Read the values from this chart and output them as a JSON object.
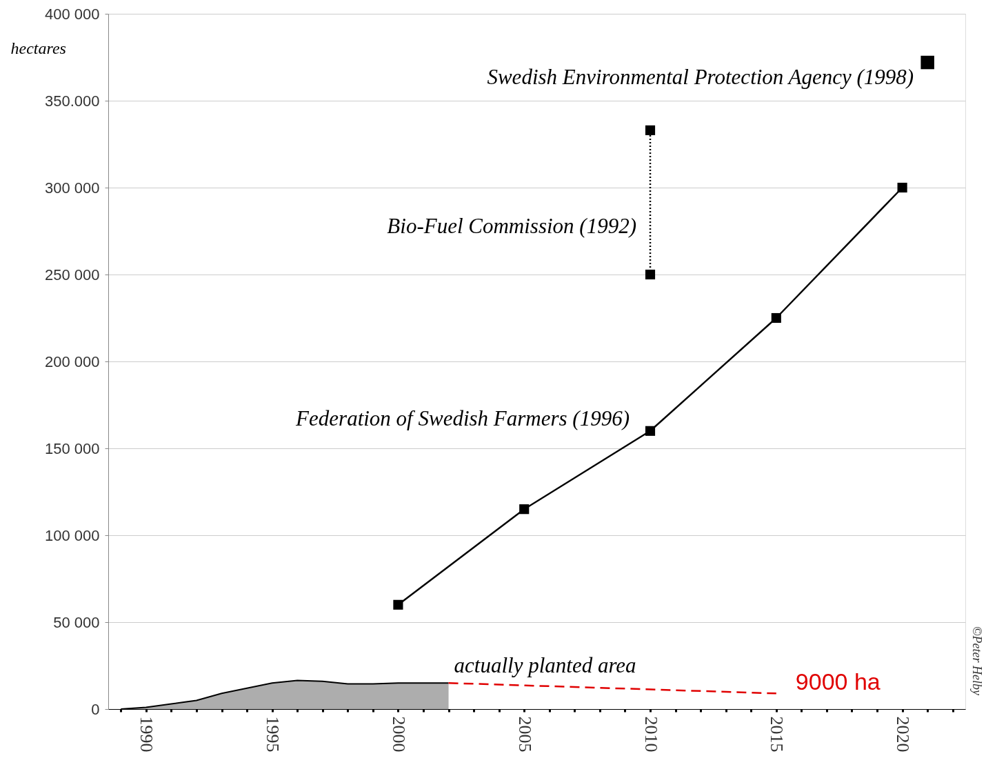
{
  "chart_data": {
    "type": "line",
    "ylabel": "hectares",
    "xlim": [
      1988.5,
      2022.5
    ],
    "xticks": [
      {
        "value": 1989,
        "label": null
      },
      1990,
      {
        "value": 1991,
        "label": null
      },
      {
        "value": 1992,
        "label": null
      },
      {
        "value": 1993,
        "label": null
      },
      {
        "value": 1994,
        "label": null
      },
      1995,
      {
        "value": 1996,
        "label": null
      },
      {
        "value": 1997,
        "label": null
      },
      {
        "value": 1998,
        "label": null
      },
      {
        "value": 1999,
        "label": null
      },
      2000,
      {
        "value": 2001,
        "label": null
      },
      {
        "value": 2002,
        "label": null
      },
      {
        "value": 2003,
        "label": null
      },
      {
        "value": 2004,
        "label": null
      },
      2005,
      {
        "value": 2006,
        "label": null
      },
      {
        "value": 2007,
        "label": null
      },
      {
        "value": 2008,
        "label": null
      },
      {
        "value": 2009,
        "label": null
      },
      2010,
      {
        "value": 2011,
        "label": null
      },
      {
        "value": 2012,
        "label": null
      },
      {
        "value": 2013,
        "label": null
      },
      {
        "value": 2014,
        "label": null
      },
      2015,
      {
        "value": 2016,
        "label": null
      },
      {
        "value": 2017,
        "label": null
      },
      {
        "value": 2018,
        "label": null
      },
      {
        "value": 2019,
        "label": null
      },
      2020,
      {
        "value": 2021,
        "label": null
      },
      {
        "value": 2022,
        "label": null
      }
    ],
    "ylim": [
      0,
      400000
    ],
    "yticks": [
      0,
      {
        "value": 50000,
        "label": "50 000"
      },
      {
        "value": 100000,
        "label": "100 000"
      },
      {
        "value": 150000,
        "label": "150 000"
      },
      {
        "value": 200000,
        "label": "200 000"
      },
      {
        "value": 250000,
        "label": "250 000"
      },
      {
        "value": 300000,
        "label": "300 000"
      },
      {
        "value": 350000,
        "label": "350.000"
      },
      {
        "value": 400000,
        "label": "400 000"
      }
    ],
    "grid": "y",
    "series": [
      {
        "name": "actually planted area",
        "type": "area",
        "color": "#999999",
        "x": [
          1989,
          1990,
          1991,
          1992,
          1993,
          1994,
          1995,
          1996,
          1997,
          1998,
          1999,
          2000,
          2001,
          2002
        ],
        "values": [
          0,
          1000,
          3000,
          5000,
          9000,
          12000,
          15000,
          16500,
          16000,
          14500,
          14500,
          15000,
          15000,
          15000
        ]
      },
      {
        "name": "Federation of Swedish Farmers (1996)",
        "color": "#000000",
        "marker": "square",
        "line_style": "solid",
        "x": [
          2000,
          2005,
          2010,
          2015,
          2020
        ],
        "values": [
          60000,
          115000,
          160000,
          225000,
          300000
        ]
      },
      {
        "name": "Bio-Fuel Commission (1992)",
        "type": "line",
        "color": "#000000",
        "marker": "square",
        "line_style": "dotted",
        "x": [
          2010,
          2010
        ],
        "values": [
          250000,
          333000
        ]
      },
      {
        "name": "Swedish Environmental Protection Agency (1998)",
        "type": "scatter",
        "color": "#000000",
        "marker": "square",
        "x": [
          2021
        ],
        "values": [
          372000
        ]
      },
      {
        "type": "line",
        "color": "#e00000",
        "marker": "none",
        "line_style": "dashed",
        "x": [
          2002,
          2015
        ],
        "values": [
          15000,
          9000
        ],
        "value_labels": [
          null,
          "9000 ha"
        ]
      }
    ],
    "annotations": [
      "©Peter Helby"
    ]
  }
}
